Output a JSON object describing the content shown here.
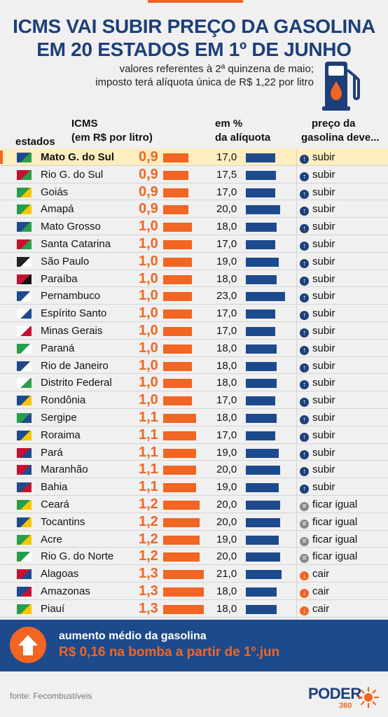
{
  "header": {
    "title_line1": "ICMS VAI SUBIR PREÇO DA GASOLINA",
    "title_line2": "EM 20 ESTADOS EM 1º DE JUNHO",
    "subtitle_line1": "valores referentes à 2ª quinzena de maio;",
    "subtitle_line2": "imposto terá alíquota única de R$ 1,22 por litro"
  },
  "columns": {
    "estados": "estados",
    "icms_line1": "ICMS",
    "icms_line2": "(em R$ por litro)",
    "pct_line1": "em %",
    "pct_line2": "da alíquota",
    "preco_line1": "preço da",
    "preco_line2": "gasolina deve..."
  },
  "colors": {
    "accent": "#f26522",
    "navy": "#1d3f7a",
    "bar_blue": "#1d4a8c",
    "highlight": "#fdeec0"
  },
  "chart_data": {
    "type": "table",
    "rows": [
      {
        "estado": "Mato G. do Sul",
        "icms": "0,9",
        "icms_value": 0.9,
        "pct": "17,0",
        "pct_value": 17.0,
        "status": "subir",
        "status_icon": "up-arrow-icon",
        "highlight": true,
        "flag": "flag-ms-icon"
      },
      {
        "estado": "Rio G. do Sul",
        "icms": "0,9",
        "icms_value": 0.9,
        "pct": "17,5",
        "pct_value": 17.5,
        "status": "subir",
        "status_icon": "up-arrow-icon",
        "flag": "flag-rs-icon"
      },
      {
        "estado": "Goiás",
        "icms": "0,9",
        "icms_value": 0.9,
        "pct": "17,0",
        "pct_value": 17.0,
        "status": "subir",
        "status_icon": "up-arrow-icon",
        "flag": "flag-go-icon"
      },
      {
        "estado": "Amapá",
        "icms": "0,9",
        "icms_value": 0.9,
        "pct": "20,0",
        "pct_value": 20.0,
        "status": "subir",
        "status_icon": "up-arrow-icon",
        "flag": "flag-ap-icon"
      },
      {
        "estado": "Mato Grosso",
        "icms": "1,0",
        "icms_value": 1.0,
        "pct": "18,0",
        "pct_value": 18.0,
        "status": "subir",
        "status_icon": "up-arrow-icon",
        "flag": "flag-mt-icon"
      },
      {
        "estado": "Santa Catarina",
        "icms": "1,0",
        "icms_value": 1.0,
        "pct": "17,0",
        "pct_value": 17.0,
        "status": "subir",
        "status_icon": "up-arrow-icon",
        "flag": "flag-sc-icon"
      },
      {
        "estado": "São Paulo",
        "icms": "1,0",
        "icms_value": 1.0,
        "pct": "19,0",
        "pct_value": 19.0,
        "status": "subir",
        "status_icon": "up-arrow-icon",
        "flag": "flag-sp-icon"
      },
      {
        "estado": "Paraíba",
        "icms": "1,0",
        "icms_value": 1.0,
        "pct": "18,0",
        "pct_value": 18.0,
        "status": "subir",
        "status_icon": "up-arrow-icon",
        "flag": "flag-pb-icon"
      },
      {
        "estado": "Pernambuco",
        "icms": "1,0",
        "icms_value": 1.0,
        "pct": "23,0",
        "pct_value": 23.0,
        "status": "subir",
        "status_icon": "up-arrow-icon",
        "flag": "flag-pe-icon"
      },
      {
        "estado": "Espírito Santo",
        "icms": "1,0",
        "icms_value": 1.0,
        "pct": "17,0",
        "pct_value": 17.0,
        "status": "subir",
        "status_icon": "up-arrow-icon",
        "flag": "flag-es-icon"
      },
      {
        "estado": "Minas Gerais",
        "icms": "1,0",
        "icms_value": 1.0,
        "pct": "17,0",
        "pct_value": 17.0,
        "status": "subir",
        "status_icon": "up-arrow-icon",
        "flag": "flag-mg-icon"
      },
      {
        "estado": "Paraná",
        "icms": "1,0",
        "icms_value": 1.0,
        "pct": "18,0",
        "pct_value": 18.0,
        "status": "subir",
        "status_icon": "up-arrow-icon",
        "flag": "flag-pr-icon"
      },
      {
        "estado": "Rio de Janeiro",
        "icms": "1,0",
        "icms_value": 1.0,
        "pct": "18,0",
        "pct_value": 18.0,
        "status": "subir",
        "status_icon": "up-arrow-icon",
        "flag": "flag-rj-icon"
      },
      {
        "estado": "Distrito Federal",
        "icms": "1,0",
        "icms_value": 1.0,
        "pct": "18,0",
        "pct_value": 18.0,
        "status": "subir",
        "status_icon": "up-arrow-icon",
        "flag": "flag-df-icon"
      },
      {
        "estado": "Rondônia",
        "icms": "1,0",
        "icms_value": 1.0,
        "pct": "17,0",
        "pct_value": 17.0,
        "status": "subir",
        "status_icon": "up-arrow-icon",
        "flag": "flag-ro-icon"
      },
      {
        "estado": "Sergipe",
        "icms": "1,1",
        "icms_value": 1.1,
        "pct": "18,0",
        "pct_value": 18.0,
        "status": "subir",
        "status_icon": "up-arrow-icon",
        "flag": "flag-se-icon"
      },
      {
        "estado": "Roraima",
        "icms": "1,1",
        "icms_value": 1.1,
        "pct": "17,0",
        "pct_value": 17.0,
        "status": "subir",
        "status_icon": "up-arrow-icon",
        "flag": "flag-rr-icon"
      },
      {
        "estado": "Pará",
        "icms": "1,1",
        "icms_value": 1.1,
        "pct": "19,0",
        "pct_value": 19.0,
        "status": "subir",
        "status_icon": "up-arrow-icon",
        "flag": "flag-pa-icon"
      },
      {
        "estado": "Maranhão",
        "icms": "1,1",
        "icms_value": 1.1,
        "pct": "20,0",
        "pct_value": 20.0,
        "status": "subir",
        "status_icon": "up-arrow-icon",
        "flag": "flag-ma-icon"
      },
      {
        "estado": "Bahia",
        "icms": "1,1",
        "icms_value": 1.1,
        "pct": "19,0",
        "pct_value": 19.0,
        "status": "subir",
        "status_icon": "up-arrow-icon",
        "flag": "flag-ba-icon"
      },
      {
        "estado": "Ceará",
        "icms": "1,2",
        "icms_value": 1.2,
        "pct": "20,0",
        "pct_value": 20.0,
        "status": "ficar igual",
        "status_icon": "equal-icon",
        "flag": "flag-ce-icon"
      },
      {
        "estado": "Tocantins",
        "icms": "1,2",
        "icms_value": 1.2,
        "pct": "20,0",
        "pct_value": 20.0,
        "status": "ficar igual",
        "status_icon": "equal-icon",
        "flag": "flag-to-icon"
      },
      {
        "estado": "Acre",
        "icms": "1,2",
        "icms_value": 1.2,
        "pct": "19,0",
        "pct_value": 19.0,
        "status": "ficar igual",
        "status_icon": "equal-icon",
        "flag": "flag-ac-icon"
      },
      {
        "estado": "Rio G. do Norte",
        "icms": "1,2",
        "icms_value": 1.2,
        "pct": "20,0",
        "pct_value": 20.0,
        "status": "ficar igual",
        "status_icon": "equal-icon",
        "flag": "flag-rn-icon"
      },
      {
        "estado": "Alagoas",
        "icms": "1,3",
        "icms_value": 1.3,
        "pct": "21,0",
        "pct_value": 21.0,
        "status": "cair",
        "status_icon": "down-arrow-icon",
        "flag": "flag-al-icon"
      },
      {
        "estado": "Amazonas",
        "icms": "1,3",
        "icms_value": 1.3,
        "pct": "18,0",
        "pct_value": 18.0,
        "status": "cair",
        "status_icon": "down-arrow-icon",
        "flag": "flag-am-icon"
      },
      {
        "estado": "Piauí",
        "icms": "1,3",
        "icms_value": 1.3,
        "pct": "18,0",
        "pct_value": 18.0,
        "status": "cair",
        "status_icon": "down-arrow-icon",
        "flag": "flag-pi-icon"
      }
    ]
  },
  "banner": {
    "line1": "aumento médio da gasolina",
    "line2": "R$ 0,16 na bomba a partir de 1º.jun",
    "icon": "up-arrow-icon"
  },
  "footer": {
    "source": "fonte: Fecombustíveis",
    "logo_text": "PODER",
    "logo_number": "360"
  },
  "icons": {
    "pump": "gas-pump-icon",
    "logo_sun": "sun-icon"
  }
}
